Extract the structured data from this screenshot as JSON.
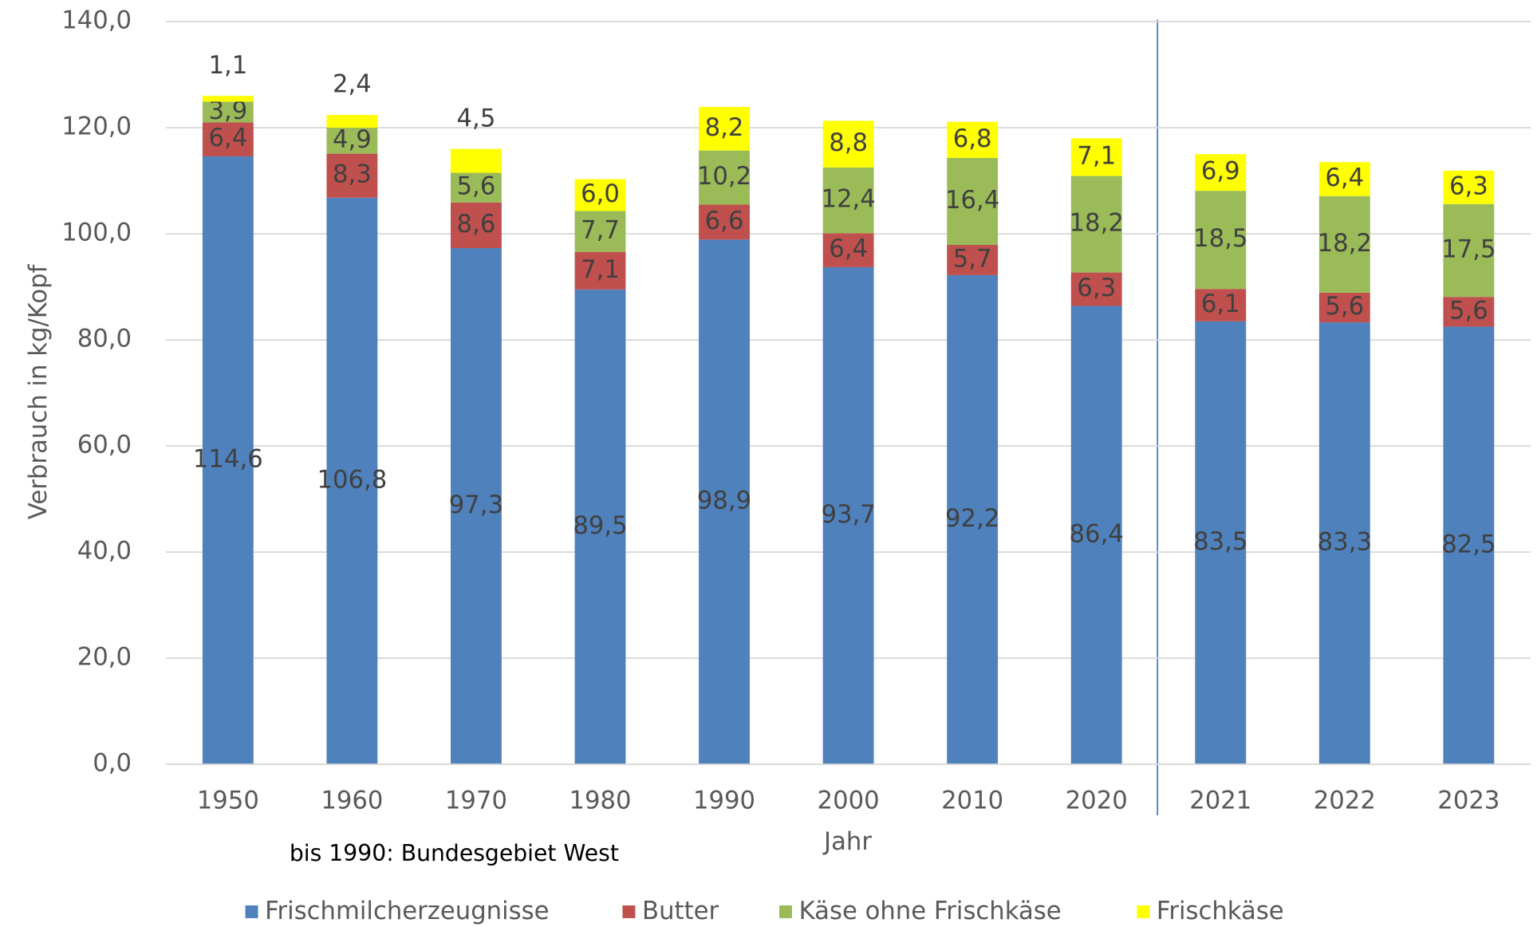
{
  "chart_data": {
    "type": "bar",
    "stacked": true,
    "categories": [
      "1950",
      "1960",
      "1970",
      "1980",
      "1990",
      "2000",
      "2010",
      "2020",
      "2021",
      "2022",
      "2023"
    ],
    "series": [
      {
        "name": "Frischmilcherzeugnisse",
        "color": "#4f81bd",
        "values": [
          114.6,
          106.8,
          97.3,
          89.5,
          98.9,
          93.7,
          92.2,
          86.4,
          83.5,
          83.3,
          82.5
        ],
        "value_labels": [
          "114,6",
          "106,8",
          "97,3",
          "89,5",
          "98,9",
          "93,7",
          "92,2",
          "86,4",
          "83,5",
          "83,3",
          "82,5"
        ]
      },
      {
        "name": "Butter",
        "color": "#c0504d",
        "values": [
          6.4,
          8.3,
          8.6,
          7.1,
          6.6,
          6.4,
          5.7,
          6.3,
          6.1,
          5.6,
          5.6
        ],
        "value_labels": [
          "6,4",
          "8,3",
          "8,6",
          "7,1",
          "6,6",
          "6,4",
          "5,7",
          "6,3",
          "6,1",
          "5,6",
          "5,6"
        ]
      },
      {
        "name": "Käse ohne Frischkäse",
        "color": "#9bbb59",
        "values": [
          3.9,
          4.9,
          5.6,
          7.7,
          10.2,
          12.4,
          16.4,
          18.2,
          18.5,
          18.2,
          17.5
        ],
        "value_labels": [
          "3,9",
          "4,9",
          "5,6",
          "7,7",
          "10,2",
          "12,4",
          "16,4",
          "18,2",
          "18,5",
          "18,2",
          "17,5"
        ]
      },
      {
        "name": "Frischkäse",
        "color": "#ffff00",
        "values": [
          1.1,
          2.4,
          4.5,
          6.0,
          8.2,
          8.8,
          6.8,
          7.1,
          6.9,
          6.4,
          6.3
        ],
        "value_labels": [
          "1,1",
          "2,4",
          "4,5",
          "6,0",
          "8,2",
          "8,8",
          "6,8",
          "7,1",
          "6,9",
          "6,4",
          "6,3"
        ]
      }
    ],
    "ylabel": "Verbrauch in kg/Kopf",
    "xlabel": "Jahr",
    "annotation": "bis 1990: Bundesgebiet West",
    "ylim": [
      0,
      140
    ],
    "yticks": [
      {
        "value": 0,
        "label": "0,0"
      },
      {
        "value": 20,
        "label": "20,0"
      },
      {
        "value": 40,
        "label": "40,0"
      },
      {
        "value": 60,
        "label": "60,0"
      },
      {
        "value": 80,
        "label": "80,0"
      },
      {
        "value": 100,
        "label": "100,0"
      },
      {
        "value": 120,
        "label": "120,0"
      },
      {
        "value": 140,
        "label": "140,0"
      }
    ],
    "grid": true
  }
}
